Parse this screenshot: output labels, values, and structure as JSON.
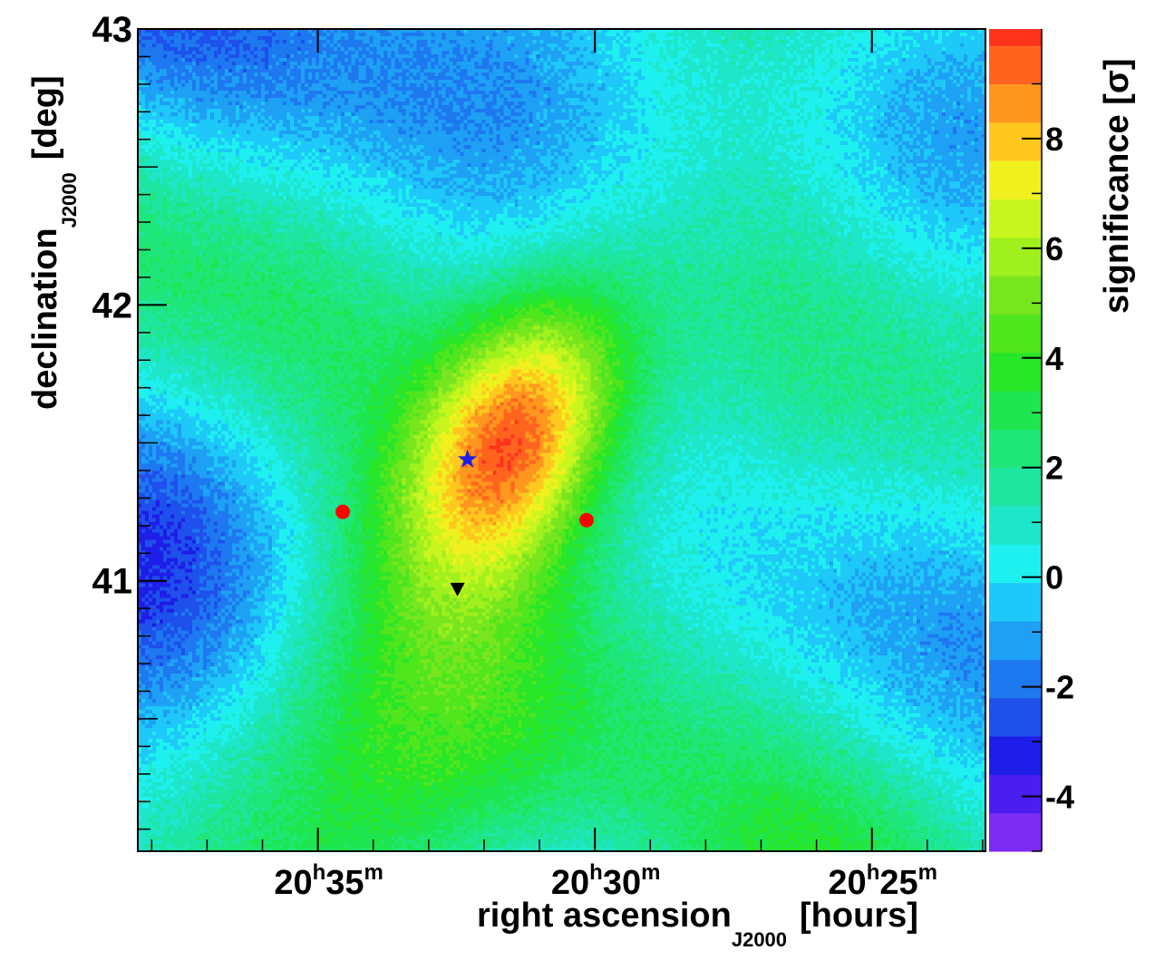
{
  "chart_data": {
    "type": "heatmap",
    "xlabel": "right ascension",
    "xlabel_sub": "J2000",
    "xlabel_unit": "[hours]",
    "ylabel": "declination",
    "ylabel_sub": "J2000",
    "ylabel_unit": "[deg]",
    "zlabel": "significance [σ]",
    "x_axis_reversed": true,
    "x_range_minutes": [
      38.25,
      22.95
    ],
    "y_range_deg": [
      40.02,
      43.0
    ],
    "x_ticks": [
      {
        "value_min": 35,
        "hours": "20",
        "h": "h",
        "minutes": "35",
        "m": "m"
      },
      {
        "value_min": 30,
        "hours": "20",
        "h": "h",
        "minutes": "30",
        "m": "m"
      },
      {
        "value_min": 25,
        "hours": "20",
        "h": "h",
        "minutes": "25",
        "m": "m"
      }
    ],
    "y_ticks": [
      {
        "value": 43,
        "label": "43"
      },
      {
        "value": 42,
        "label": "42"
      },
      {
        "value": 41,
        "label": "41"
      }
    ],
    "z_range": [
      -5,
      10
    ],
    "z_ticks": [
      {
        "value": 8,
        "label": "8"
      },
      {
        "value": 6,
        "label": "6"
      },
      {
        "value": 4,
        "label": "4"
      },
      {
        "value": 2,
        "label": "2"
      },
      {
        "value": 0,
        "label": "0"
      },
      {
        "value": -2,
        "label": "-2"
      },
      {
        "value": -4,
        "label": "-4"
      }
    ],
    "z_levels": [
      -5,
      -4.3,
      -3.6,
      -2.9,
      -2.2,
      -1.5,
      -0.8,
      -0.1,
      0.6,
      1.3,
      2.0,
      2.7,
      3.4,
      4.1,
      4.8,
      5.5,
      6.2,
      6.9,
      7.6,
      8.3,
      9.0,
      9.7
    ],
    "colors": [
      "#7b2cf0",
      "#4b1ef0",
      "#1e1ee8",
      "#1e50ec",
      "#1e78f0",
      "#1ea0f4",
      "#1ec8f8",
      "#1ef0f0",
      "#1ee6c8",
      "#1ee6a0",
      "#1ee678",
      "#1ee650",
      "#28e628",
      "#50e61e",
      "#78e61e",
      "#a0f01e",
      "#c8f51e",
      "#f0f01e",
      "#ffc81e",
      "#ff961e",
      "#ff641e",
      "#ff321e"
    ],
    "peak": {
      "ra_min": 31.4,
      "dec": 41.55,
      "value": 9.5
    },
    "markers": [
      {
        "name": "blue-star",
        "ra_min": 32.3,
        "dec": 41.44,
        "shape": "star",
        "color": "#1e1ee8"
      },
      {
        "name": "red-dot-left",
        "ra_min": 34.55,
        "dec": 41.25,
        "shape": "circle",
        "color": "#ff0000"
      },
      {
        "name": "red-dot-right",
        "ra_min": 30.15,
        "dec": 41.22,
        "shape": "circle",
        "color": "#ff0000"
      },
      {
        "name": "black-triangle",
        "ra_min": 32.48,
        "dec": 40.97,
        "shape": "triangle-down",
        "color": "#000000"
      }
    ]
  }
}
